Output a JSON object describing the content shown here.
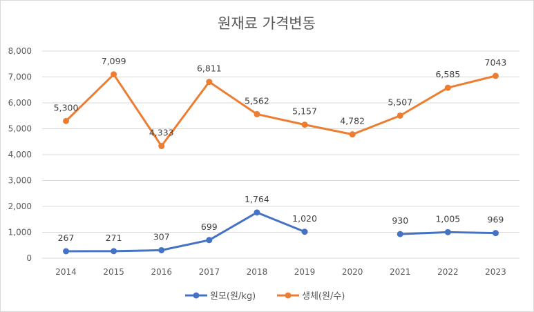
{
  "chart_data": {
    "type": "line",
    "title": "원재료 가격변동",
    "xlabel": "",
    "ylabel": "",
    "categories": [
      "2014",
      "2015",
      "2016",
      "2017",
      "2018",
      "2019",
      "2020",
      "2021",
      "2022",
      "2023"
    ],
    "ylim": [
      0,
      8000
    ],
    "yticks": [
      "0",
      "1,000",
      "2,000",
      "3,000",
      "4,000",
      "5,000",
      "6,000",
      "7,000",
      "8,000"
    ],
    "grid": true,
    "legend_position": "bottom",
    "series": [
      {
        "name": "원모(원/kg)",
        "color": "#4472c4",
        "values": [
          267,
          271,
          307,
          699,
          1764,
          1020,
          null,
          930,
          1005,
          969
        ],
        "labels": [
          "267",
          "271",
          "307",
          "699",
          "1,764",
          "1,020",
          "",
          "930",
          "1,005",
          "969"
        ]
      },
      {
        "name": "생체(원/수)",
        "color": "#ed7d31",
        "values": [
          5300,
          7099,
          4333,
          6811,
          5562,
          5157,
          4782,
          5507,
          6585,
          7043
        ],
        "labels": [
          "5,300",
          "7,099",
          "4,333",
          "6,811",
          "5,562",
          "5,157",
          "4,782",
          "5,507",
          "6,585",
          "7043"
        ]
      }
    ]
  }
}
